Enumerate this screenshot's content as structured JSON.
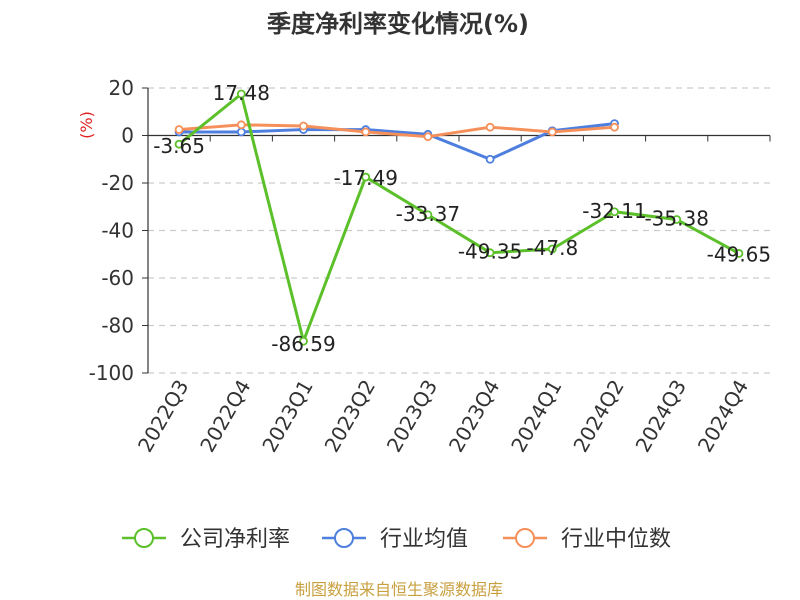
{
  "chart_data": {
    "type": "line",
    "title": "季度净利率变化情况(%)",
    "ylabel": "(%)",
    "xlabel": "",
    "ylim": [
      -100,
      20
    ],
    "yticks": [
      20,
      0,
      -20,
      -40,
      -60,
      -80,
      -100
    ],
    "categories": [
      "2022Q3",
      "2022Q4",
      "2023Q1",
      "2023Q2",
      "2023Q3",
      "2023Q4",
      "2024Q1",
      "2024Q2",
      "2024Q3",
      "2024Q4"
    ],
    "grid": true,
    "legend_position": "bottom",
    "series": [
      {
        "name": "公司净利率",
        "color": "#5cc02a",
        "values": [
          -3.65,
          17.48,
          -86.59,
          -17.49,
          -33.37,
          -49.35,
          -47.8,
          -32.11,
          -35.38,
          -49.65
        ],
        "labels": [
          "-3.65",
          "17.48",
          "-86.59",
          "-17.49",
          "-33.37",
          "-49.35",
          "-47.8",
          "-32.11",
          "-35.38",
          "-49.65"
        ]
      },
      {
        "name": "行业均值",
        "color": "#4f7fde",
        "values": [
          1.5,
          1.5,
          2.5,
          2.5,
          0.5,
          -10,
          2,
          5,
          null,
          null
        ]
      },
      {
        "name": "行业中位数",
        "color": "#f5905a",
        "values": [
          2.5,
          4.5,
          4.0,
          1.5,
          -0.5,
          3.5,
          1.5,
          3.5,
          null,
          null
        ]
      }
    ]
  },
  "source_text": "制图数据来自恒生聚源数据库",
  "colors": {
    "ylabel": "#e02020",
    "source": "#c8a040",
    "grid": "#cccccc",
    "axis": "#333333"
  }
}
